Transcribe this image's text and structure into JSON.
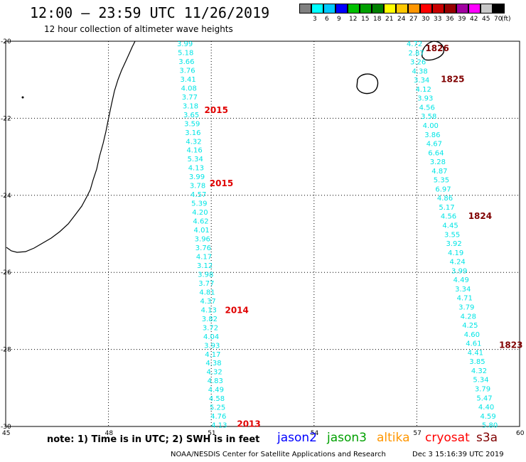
{
  "header": {
    "title": "12:00 – 23:59 UTC 11/26/2019",
    "subtitle": "12 hour collection of altimeter wave heights"
  },
  "legend": {
    "colors": [
      "#808080",
      "#00ffff",
      "#00c8ff",
      "#0000ff",
      "#00c000",
      "#00a000",
      "#008000",
      "#ffff00",
      "#ffc800",
      "#ff9600",
      "#ff0000",
      "#c80000",
      "#960000",
      "#a000a0",
      "#ff00ff",
      "#c8c8c8",
      "#000000"
    ],
    "labels": [
      "3",
      "6",
      "9",
      "12",
      "15",
      "18",
      "21",
      "24",
      "27",
      "30",
      "33",
      "36",
      "39",
      "42",
      "45",
      "70"
    ],
    "unit": "(ft)"
  },
  "map": {
    "lat_ticks": [
      "-20",
      "-22",
      "-24",
      "-26",
      "-28",
      "-30"
    ],
    "lon_ticks": [
      "45",
      "48",
      "51",
      "54",
      "57",
      "60"
    ],
    "lat_range": [
      -30,
      -20
    ],
    "lon_range": [
      45,
      60
    ],
    "grid": true,
    "wave_color": "#00e5e5",
    "track_a": {
      "lon_start": 50.0,
      "lon_end": 51.0,
      "values": [
        "3.99",
        "5.18",
        "3.66",
        "3.76",
        "3.41",
        "4.08",
        "3.77",
        "3.18",
        "3.65",
        "3.59",
        "3.16",
        "4.32",
        "4.16",
        "5.34",
        "4.13",
        "3.99",
        "3.78",
        "4.57",
        "5.39",
        "4.20",
        "4.62",
        "4.01",
        "3.96",
        "3.76",
        "4.17",
        "3.12",
        "3.98",
        "3.77",
        "4.81",
        "4.37",
        "4.13",
        "3.82",
        "3.72",
        "4.04",
        "3.93",
        "4.17",
        "4.38",
        "4.32",
        "4.83",
        "4.49",
        "4.58",
        "5.25",
        "4.76",
        "4.13"
      ]
    },
    "track_b": {
      "lon_start": 56.7,
      "lon_end": 58.9,
      "values": [
        "4.72",
        "2.87",
        "3.26",
        "4.38",
        "3.34",
        "4.12",
        "3.93",
        "4.56",
        "3.58",
        "4.00",
        "3.86",
        "4.67",
        "6.64",
        "3.28",
        "4.87",
        "5.35",
        "6.97",
        "4.86",
        "5.17",
        "4.56",
        "4.45",
        "3.55",
        "3.92",
        "4.19",
        "4.24",
        "3.99",
        "4.49",
        "3.34",
        "4.71",
        "3.79",
        "4.28",
        "4.25",
        "4.60",
        "4.61",
        "4.41",
        "3.85",
        "4.32",
        "5.34",
        "3.79",
        "5.47",
        "4.40",
        "4.59",
        "5.80"
      ]
    },
    "time_labels": [
      {
        "text": "2015",
        "lat": -21.75,
        "lon": 50.8,
        "color": "#e00000"
      },
      {
        "text": "2015",
        "lat": -23.65,
        "lon": 50.95,
        "color": "#e00000"
      },
      {
        "text": "2014",
        "lat": -26.95,
        "lon": 51.4,
        "color": "#e00000"
      },
      {
        "text": "2013",
        "lat": -29.9,
        "lon": 51.75,
        "color": "#e00000"
      },
      {
        "text": "1826",
        "lat": -20.15,
        "lon": 57.25,
        "color": "#800000"
      },
      {
        "text": "1825",
        "lat": -20.95,
        "lon": 57.7,
        "color": "#800000"
      },
      {
        "text": "1824",
        "lat": -24.5,
        "lon": 58.5,
        "color": "#800000"
      },
      {
        "text": "1823",
        "lat": -27.85,
        "lon": 59.4,
        "color": "#800000"
      }
    ]
  },
  "footer": {
    "note": "note: 1) Time is in UTC; 2) SWH is in feet",
    "satellites": [
      {
        "name": "jason2",
        "color": "#0000ff"
      },
      {
        "name": "jason3",
        "color": "#00a000"
      },
      {
        "name": "altika",
        "color": "#ff9600"
      },
      {
        "name": "cryosat",
        "color": "#ff0000"
      },
      {
        "name": "s3a",
        "color": "#800000"
      }
    ],
    "credit": "NOAA/NESDIS Center for Satellite Applications and Research",
    "timestamp": "Dec  3 15:16:39 UTC 2019"
  }
}
